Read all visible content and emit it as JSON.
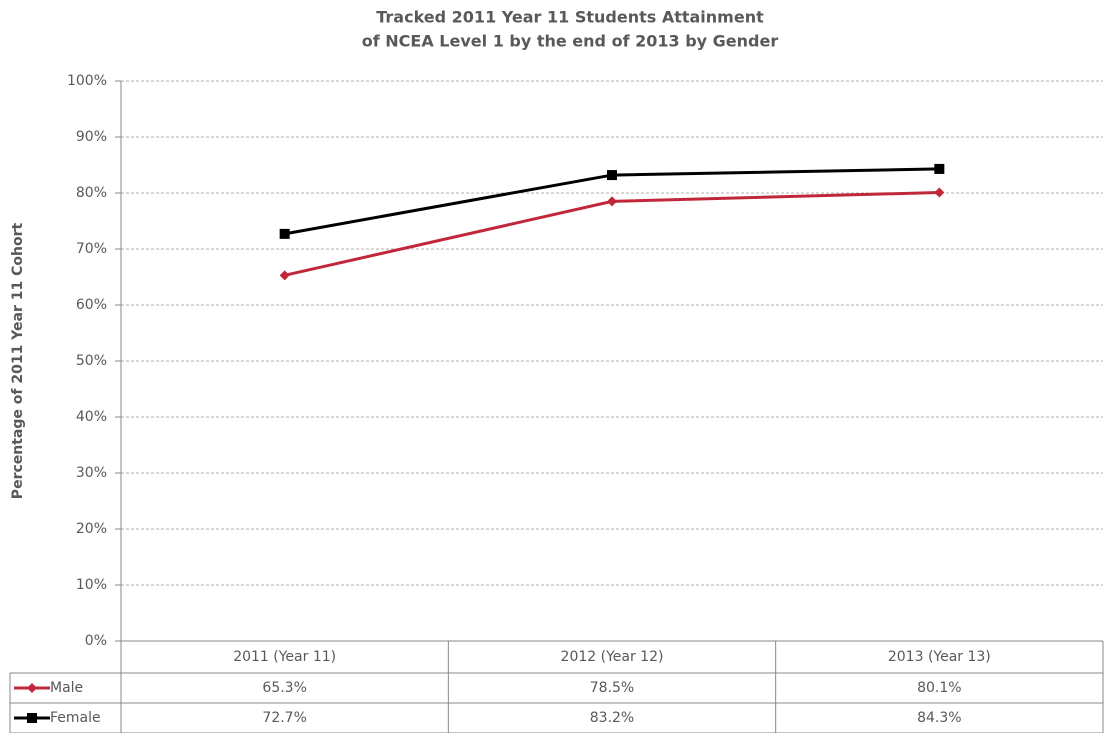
{
  "chart_data": {
    "type": "line",
    "title": [
      "Tracked 2011 Year 11 Students Attainment",
      "of NCEA Level 1 by the end of 2013 by Gender"
    ],
    "y_label": "Percentage of 2011 Year 11 Cohort",
    "categories": [
      "2011 (Year 11)",
      "2012 (Year 12)",
      "2013 (Year 13)"
    ],
    "series": [
      {
        "name": "Male",
        "color": "#c0283a",
        "marker": "diamond",
        "values": [
          65.3,
          78.5,
          80.1
        ],
        "value_labels": [
          "65.3%",
          "78.5%",
          "80.1%"
        ]
      },
      {
        "name": "Female",
        "color": "#000000",
        "marker": "square",
        "values": [
          72.7,
          83.2,
          84.3
        ],
        "value_labels": [
          "72.7%",
          "83.2%",
          "84.3%"
        ]
      }
    ],
    "ylim": [
      0,
      100
    ],
    "yticks": [
      {
        "value": 0,
        "label": "0%"
      },
      {
        "value": 10,
        "label": "10%"
      },
      {
        "value": 20,
        "label": "20%"
      },
      {
        "value": 30,
        "label": "30%"
      },
      {
        "value": 40,
        "label": "40%"
      },
      {
        "value": 50,
        "label": "50%"
      },
      {
        "value": 60,
        "label": "60%"
      },
      {
        "value": 70,
        "label": "70%"
      },
      {
        "value": 80,
        "label": "80%"
      },
      {
        "value": 90,
        "label": "90%"
      },
      {
        "value": 100,
        "label": "100%"
      }
    ],
    "grid": true,
    "data_table": true
  }
}
